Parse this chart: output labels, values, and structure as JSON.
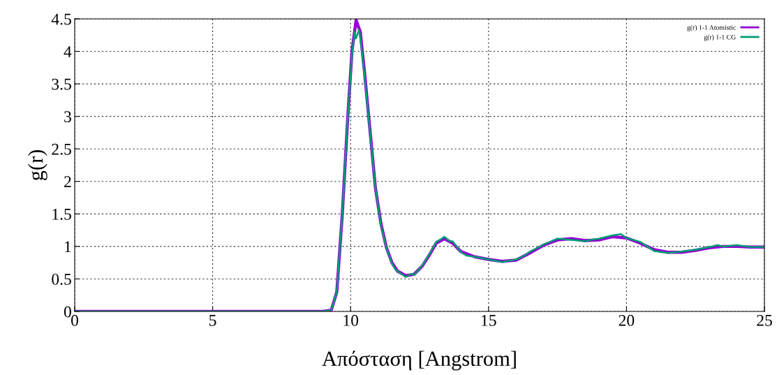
{
  "chart_data": {
    "type": "line",
    "xlabel": "Απόσταση [Angstrom]",
    "ylabel": "g(r)",
    "xlim": [
      0,
      25
    ],
    "ylim": [
      0,
      4.5
    ],
    "xticks": [
      0,
      5,
      10,
      15,
      20,
      25
    ],
    "yticks": [
      0,
      0.5,
      1,
      1.5,
      2,
      2.5,
      3,
      3.5,
      4,
      4.5
    ],
    "grid": true,
    "legend": "top right",
    "marker": "none",
    "line_style": "solid",
    "series": [
      {
        "name": "g(r) 1-1 Atomistic",
        "color": "#9400d3",
        "x": [
          0,
          9.0,
          9.3,
          9.5,
          9.7,
          9.9,
          10.05,
          10.2,
          10.35,
          10.5,
          10.7,
          10.9,
          11.1,
          11.3,
          11.5,
          11.7,
          12.0,
          12.3,
          12.6,
          12.9,
          13.1,
          13.4,
          13.7,
          14.0,
          14.5,
          15.0,
          15.5,
          16.0,
          16.5,
          17.0,
          17.5,
          18.0,
          18.5,
          19.0,
          19.5,
          20.0,
          20.5,
          21.0,
          21.5,
          22.0,
          22.5,
          23.0,
          23.5,
          24.0,
          24.5,
          25.0
        ],
        "values": [
          0,
          0,
          0.02,
          0.3,
          1.5,
          3.0,
          4.0,
          4.48,
          4.3,
          3.7,
          2.8,
          1.9,
          1.35,
          0.98,
          0.75,
          0.62,
          0.55,
          0.57,
          0.7,
          0.9,
          1.05,
          1.12,
          1.05,
          0.92,
          0.84,
          0.8,
          0.77,
          0.79,
          0.9,
          1.02,
          1.1,
          1.12,
          1.09,
          1.1,
          1.15,
          1.13,
          1.05,
          0.95,
          0.91,
          0.91,
          0.94,
          0.98,
          1.0,
          1.0,
          0.99,
          0.99
        ]
      },
      {
        "name": "g(r) 1-1 CG",
        "color": "#009e73",
        "x": [
          0,
          9.0,
          9.3,
          9.5,
          9.7,
          9.9,
          10.05,
          10.15,
          10.2,
          10.3,
          10.35,
          10.5,
          10.7,
          10.9,
          11.1,
          11.3,
          11.5,
          11.6,
          11.7,
          12.0,
          12.2,
          12.3,
          12.6,
          12.9,
          13.1,
          13.3,
          13.4,
          13.6,
          13.7,
          14.0,
          14.2,
          14.5,
          15.0,
          15.5,
          16.0,
          16.3,
          16.5,
          17.0,
          17.5,
          18.0,
          18.5,
          18.7,
          19.0,
          19.5,
          19.8,
          20.0,
          20.5,
          21.0,
          21.5,
          22.0,
          22.5,
          23.0,
          23.3,
          23.5,
          24.0,
          24.5,
          25.0
        ],
        "values": [
          0,
          0,
          0.02,
          0.3,
          1.5,
          3.0,
          3.95,
          4.3,
          4.2,
          4.33,
          4.22,
          3.65,
          2.78,
          1.9,
          1.33,
          0.97,
          0.74,
          0.66,
          0.62,
          0.53,
          0.58,
          0.56,
          0.71,
          0.91,
          1.07,
          1.12,
          1.15,
          1.08,
          1.08,
          0.91,
          0.86,
          0.84,
          0.8,
          0.76,
          0.8,
          0.86,
          0.92,
          1.03,
          1.12,
          1.1,
          1.08,
          1.1,
          1.12,
          1.17,
          1.19,
          1.13,
          1.07,
          0.93,
          0.9,
          0.92,
          0.95,
          0.99,
          1.02,
          1.0,
          1.02,
          0.99,
          0.99
        ]
      }
    ]
  }
}
